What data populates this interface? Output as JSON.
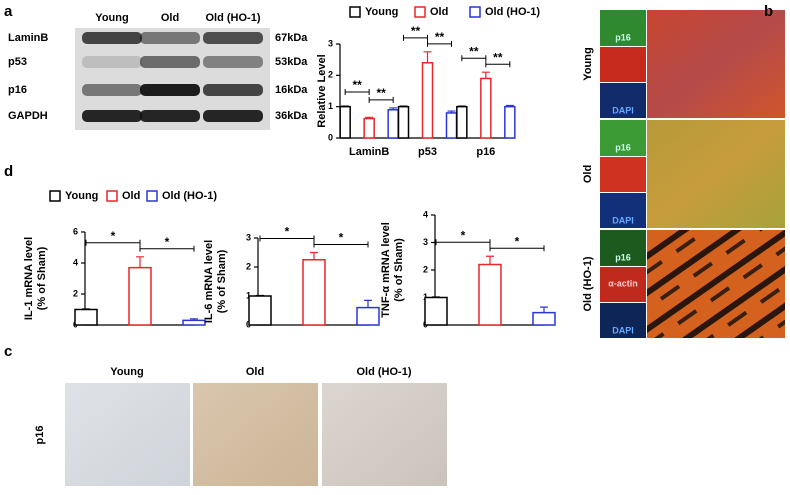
{
  "panel_labels": [
    "a",
    "b",
    "c",
    "d"
  ],
  "blot": {
    "columns": [
      "Young",
      "Old",
      "Old (HO-1)"
    ],
    "rows": [
      "LaminB",
      "p53",
      "p16",
      "GAPDH"
    ],
    "weights": [
      "67kDa",
      "53kDa",
      "16kDa",
      "36kDa"
    ]
  },
  "immunofluorescence": {
    "rows": [
      "Young",
      "Old",
      "Old (HO-1)"
    ],
    "channel_labels": [
      "p16",
      "DAPI"
    ],
    "actin_label": "α-actin"
  },
  "ihc": {
    "columns": [
      "Young",
      "Old",
      "Old (HO-1)"
    ],
    "row_label": "p16"
  },
  "d_legend": [
    "Young",
    "Old",
    "Old (HO-1)"
  ],
  "chart_data": [
    {
      "type": "bar",
      "categories": [
        "LaminB",
        "p53",
        "p16"
      ],
      "y_label": [
        "Relative Level"
      ],
      "series": [
        {
          "name": "Young",
          "color": "#000000",
          "values": [
            1,
            1,
            1
          ],
          "errors": [
            0.02,
            0.02,
            0.02
          ]
        },
        {
          "name": "Old",
          "color": "#e8262b",
          "values": [
            0.62,
            2.4,
            1.9
          ],
          "errors": [
            0.04,
            0.35,
            0.2
          ]
        },
        {
          "name": "Old (HO-1)",
          "color": "#2a35d6",
          "values": [
            0.9,
            0.8,
            1.0
          ],
          "errors": [
            0.06,
            0.06,
            0.04
          ]
        }
      ],
      "ylim": [
        0,
        3
      ],
      "yticks": [
        0,
        1,
        2,
        3
      ],
      "significance": [
        [
          "**",
          "**"
        ],
        [
          "**",
          "**"
        ],
        [
          "**",
          "**"
        ]
      ]
    },
    {
      "type": "bar",
      "categories": [
        null
      ],
      "y_label": [
        "IL-1 mRNA level",
        "(% of Sham)"
      ],
      "series": [
        {
          "color": "#000000",
          "values": [
            1
          ],
          "errors": [
            0.03
          ]
        },
        {
          "color": "#e8262b",
          "values": [
            3.7
          ],
          "errors": [
            0.7
          ]
        },
        {
          "color": "#2a35d6",
          "values": [
            0.3
          ],
          "errors": [
            0.1
          ]
        }
      ],
      "ylim": [
        0,
        6
      ],
      "yticks": [
        0,
        2,
        4,
        6
      ],
      "significance": [
        [
          "*",
          "*"
        ]
      ]
    },
    {
      "type": "bar",
      "categories": [
        null
      ],
      "y_label": [
        "IL-6 mRNA level",
        "(% of Sham)"
      ],
      "series": [
        {
          "color": "#000000",
          "values": [
            1
          ],
          "errors": [
            0.02
          ]
        },
        {
          "color": "#e8262b",
          "values": [
            2.25
          ],
          "errors": [
            0.25
          ]
        },
        {
          "color": "#2a35d6",
          "values": [
            0.6
          ],
          "errors": [
            0.25
          ]
        }
      ],
      "ylim": [
        0,
        3
      ],
      "yticks": [
        0,
        1,
        2,
        3
      ],
      "significance": [
        [
          "*",
          "*"
        ]
      ]
    },
    {
      "type": "bar",
      "categories": [
        null
      ],
      "y_label": [
        "TNF-α mRNA level",
        "(% of Sham)"
      ],
      "series": [
        {
          "color": "#000000",
          "values": [
            1
          ],
          "errors": [
            0.02
          ]
        },
        {
          "color": "#e8262b",
          "values": [
            2.2
          ],
          "errors": [
            0.3
          ]
        },
        {
          "color": "#2a35d6",
          "values": [
            0.45
          ],
          "errors": [
            0.2
          ]
        }
      ],
      "ylim": [
        0,
        4
      ],
      "yticks": [
        0,
        1,
        2,
        3,
        4
      ],
      "significance": [
        [
          "*",
          "*"
        ]
      ]
    }
  ]
}
